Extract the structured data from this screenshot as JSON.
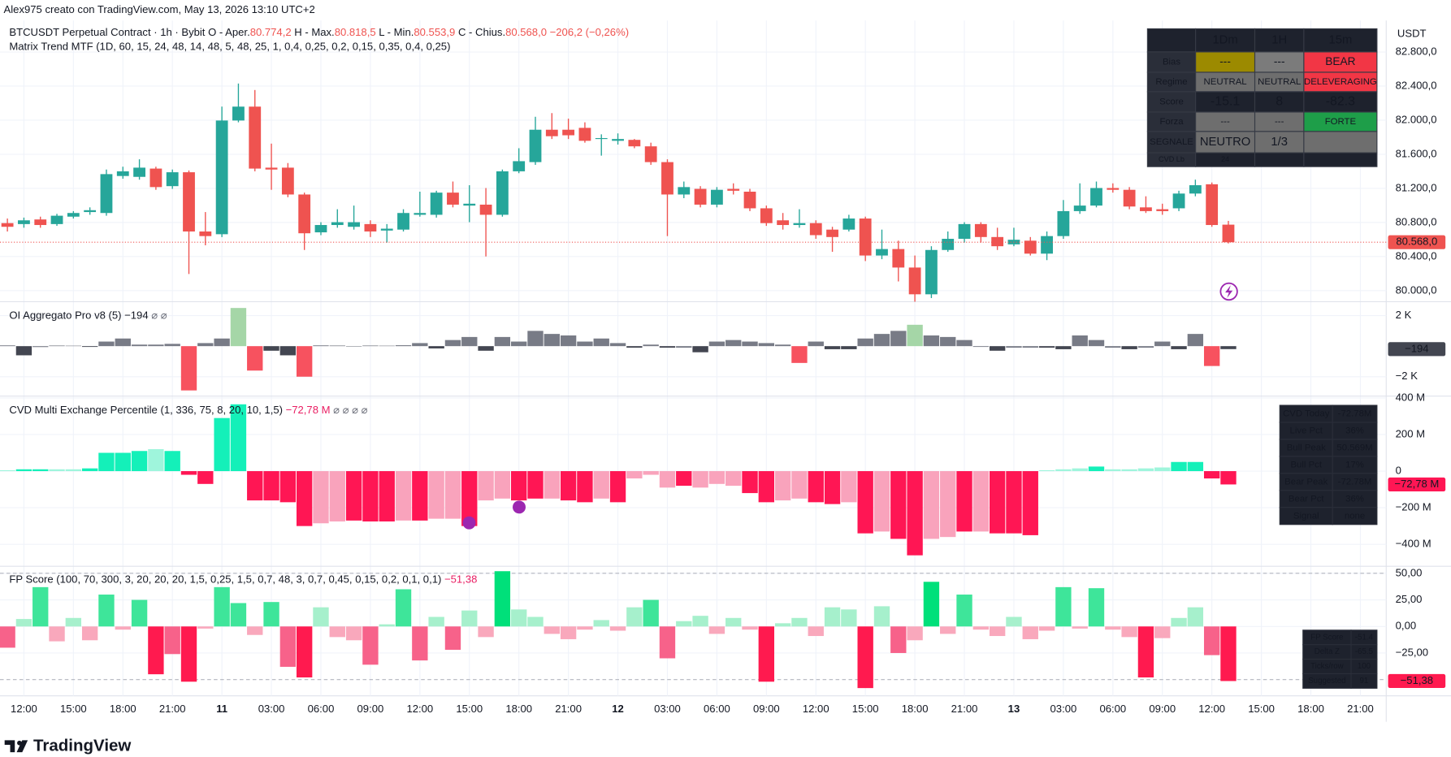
{
  "watermark": "Alex975 creato con TradingView.com, May 13, 2026 13:10 UTC+2",
  "logo": "TradingView",
  "time_axis": {
    "labels": [
      "12:00",
      "15:00",
      "18:00",
      "21:00",
      "11",
      "03:00",
      "06:00",
      "09:00",
      "12:00",
      "15:00",
      "18:00",
      "21:00",
      "12",
      "03:00",
      "06:00",
      "09:00",
      "12:00",
      "15:00",
      "18:00",
      "21:00",
      "13",
      "03:00",
      "06:00",
      "09:00",
      "12:00",
      "15:00",
      "18:00",
      "21:00"
    ]
  },
  "matrix_table": {
    "columns": [
      "1Dm",
      "1H",
      "15m"
    ],
    "rows": [
      {
        "label": "Bias",
        "cells": [
          "---",
          "---",
          "BEAR"
        ],
        "backgrounds": [
          "#9c8a00",
          "#7b7b7b",
          "#f23645"
        ],
        "colors": [
          "#ffffff",
          "#ffffff",
          "#ffffff"
        ]
      },
      {
        "label": "Regime",
        "cells": [
          "NEUTRAL",
          "NEUTRAL",
          "DELEVERAGING"
        ],
        "backgrounds": [
          "#6e6e6e",
          "#6e6e6e",
          "#f23645"
        ],
        "colors": [
          "#ffffff",
          "#ffffff",
          "#ffffff"
        ]
      },
      {
        "label": "Score",
        "cells": [
          "-15.1",
          "8",
          "-82.3"
        ],
        "backgrounds": [
          "#1e222d",
          "#1e222d",
          "#1e222d"
        ],
        "colors": [
          "#f23645",
          "#26c281",
          "#f23645"
        ]
      },
      {
        "label": "Forza",
        "cells": [
          "---",
          "---",
          "FORTE"
        ],
        "backgrounds": [
          "#6e6e6e",
          "#6e6e6e",
          "#1e9e49"
        ],
        "colors": [
          "#ffffff",
          "#ffffff",
          "#ffffff"
        ]
      },
      {
        "label": "SEGNALE",
        "cells": [
          "NEUTRO",
          "1/3"
        ],
        "backgrounds": [
          "#6e6e6e",
          "#6e6e6e",
          "#6e6e6e"
        ],
        "colors": [
          "#ffffff",
          "#ffffff"
        ]
      },
      {
        "label": "CVD Lb",
        "cells": [
          "24"
        ],
        "backgrounds": [
          "#1e222d",
          "#1e222d",
          "#1e222d"
        ],
        "colors": [
          "#8a8e99"
        ]
      }
    ]
  },
  "cvd_table": {
    "rows": [
      {
        "label": "CVD Today",
        "value": "-72.78M",
        "label_color": "#ffffff",
        "value_color": "#ff9800"
      },
      {
        "label": "Live Pct",
        "value": "36%",
        "label_color": "#ffffff",
        "value_color": "#ff9800"
      },
      {
        "label": "Bull Peak",
        "value": "50.569M",
        "label_color": "#26d07c",
        "value_color": "#26d07c"
      },
      {
        "label": "Bull Pct",
        "value": "17%",
        "label_color": "#26d07c",
        "value_color": "#26d07c"
      },
      {
        "label": "Bear Peak",
        "value": "-72.78M",
        "label_color": "#ff9800",
        "value_color": "#ff9800"
      },
      {
        "label": "Bear Pct",
        "value": "36%",
        "label_color": "#ff9800",
        "value_color": "#ff9800"
      },
      {
        "label": "Signal",
        "value": "none",
        "label_color": "#ffffff",
        "value_color": "#ffffff"
      }
    ]
  },
  "fp_table": {
    "rows": [
      {
        "label": "FP Score",
        "value": "-51.4",
        "label_color": "#ffffff",
        "value_color": "#f23645"
      },
      {
        "label": "Delta Z",
        "value": "-65.5",
        "label_color": "#8a8e99",
        "value_color": "#f23645"
      },
      {
        "label": "Ticks/row",
        "value": "100",
        "label_color": "#8a8e99",
        "value_color": "#8a8e99"
      },
      {
        "label": "Suggested",
        "value": "91",
        "label_color": "#8a8e99",
        "value_color": "#ff9800"
      }
    ]
  },
  "chart_data": [
    {
      "type": "candlestick",
      "title": "BTCUSDT Perpetual Contract · 1h · Bybit",
      "ohlc_labels": [
        {
          "label": "O - Aper.",
          "value": "80.774,2"
        },
        {
          "label": "H - Max.",
          "value": "80.818,5"
        },
        {
          "label": "L - Min.",
          "value": "80.553,9"
        },
        {
          "label": "C - Chius.",
          "value": "80.568,0"
        }
      ],
      "change_label": "−206,2 (−0,26%)",
      "subtitle": "Matrix Trend MTF (1D, 60, 15, 24, 48, 14, 48, 5, 48, 25, 1, 0,4, 0,25, 0,2, 0,15, 0,35, 0,4, 0,25)",
      "unit_label": "USDT",
      "last_value_label": "80.568,0",
      "up_color": "#26a69a",
      "down_color": "#ef5350",
      "open": [
        80792,
        80781,
        80835,
        80781,
        80868,
        80922,
        80911,
        81345,
        81335,
        81432,
        81226,
        81389,
        80694,
        80662,
        81996,
        82159,
        81443,
        81443,
        81128,
        80684,
        80770,
        80749,
        80781,
        80705,
        80716,
        80890,
        80890,
        81150,
        80998,
        81009,
        80890,
        81400,
        81508,
        81888,
        81888,
        81910,
        81779,
        81758,
        81769,
        81693,
        81508,
        81128,
        81194,
        81009,
        81194,
        81161,
        80966,
        80825,
        80770,
        80792,
        80716,
        80716,
        80846,
        80412,
        80488,
        80271,
        79957,
        80477,
        80608,
        80781,
        80629,
        80543,
        80586,
        80434,
        80640,
        80933,
        80998,
        81204,
        81183,
        80977,
        80955,
        80966,
        81139,
        81248,
        80774.2
      ],
      "high": [
        80846,
        80857,
        80868,
        80901,
        80933,
        80977,
        81421,
        81454,
        81541,
        81454,
        81421,
        81410,
        80922,
        82159,
        82430,
        82354,
        81725,
        81497,
        81150,
        80803,
        80955,
        80998,
        80825,
        80781,
        80955,
        81161,
        81172,
        81280,
        81237,
        81204,
        81421,
        81671,
        82040,
        82083,
        82018,
        81975,
        81834,
        81845,
        81779,
        81736,
        81541,
        81280,
        81226,
        81215,
        81259,
        81194,
        80998,
        80911,
        80955,
        80825,
        80749,
        80890,
        80868,
        80716,
        80586,
        80412,
        80521,
        80694,
        80803,
        80803,
        80738,
        80738,
        80629,
        80694,
        81063,
        81259,
        81280,
        81259,
        81215,
        81107,
        81020,
        81172,
        81302,
        81269,
        80818.5
      ],
      "low": [
        80694,
        80738,
        80738,
        80760,
        80846,
        80890,
        80879,
        81313,
        81302,
        81183,
        81194,
        80195,
        80532,
        80629,
        81975,
        81400,
        81183,
        81096,
        80477,
        80651,
        80738,
        80716,
        80629,
        80564,
        80694,
        80868,
        80857,
        80977,
        80803,
        80401,
        80868,
        81378,
        81476,
        81779,
        81779,
        81736,
        81584,
        81714,
        81671,
        81476,
        80640,
        81085,
        80977,
        80977,
        81128,
        80933,
        80760,
        80716,
        80738,
        80608,
        80456,
        80694,
        80347,
        80369,
        80108,
        79870,
        79913,
        80456,
        80564,
        80564,
        80477,
        80521,
        80412,
        80358,
        80608,
        80901,
        80977,
        81150,
        80955,
        80911,
        80890,
        80933,
        81107,
        80749,
        80553.9
      ],
      "close": [
        80749,
        80825,
        80770,
        80879,
        80911,
        80944,
        81367,
        81400,
        81443,
        81215,
        81389,
        80694,
        80640,
        81996,
        82159,
        81432,
        81421,
        81128,
        80673,
        80770,
        80803,
        80803,
        80694,
        80727,
        80911,
        80911,
        81150,
        81009,
        81020,
        80890,
        81400,
        81519,
        81888,
        81812,
        81823,
        81758,
        81790,
        81779,
        81693,
        81508,
        81128,
        81215,
        81009,
        81183,
        81172,
        80966,
        80792,
        80770,
        80792,
        80651,
        80629,
        80846,
        80412,
        80488,
        80271,
        79957,
        80477,
        80608,
        80781,
        80629,
        80521,
        80597,
        80434,
        80640,
        80933,
        80998,
        81204,
        81183,
        80987,
        80933,
        80933,
        81139,
        81237,
        80770,
        80568
      ],
      "ylim": [
        79870,
        83170
      ],
      "yticks": [
        {
          "value": 80000,
          "label": "80.000,0"
        },
        {
          "value": 80400,
          "label": "80.400,0"
        },
        {
          "value": 80800,
          "label": "80.800,0"
        },
        {
          "value": 81200,
          "label": "81.200,0"
        },
        {
          "value": 81600,
          "label": "81.600,0"
        },
        {
          "value": 82000,
          "label": "82.000,0"
        },
        {
          "value": 82400,
          "label": "82.400,0"
        },
        {
          "value": 82800,
          "label": "82.800,0"
        }
      ],
      "grid": true
    },
    {
      "type": "bar",
      "title": "OI Aggregato Pro v8 (5)",
      "value_label": "−194",
      "flags": "⌀ ⌀",
      "last_value_label": "−194",
      "values": [
        50,
        -600,
        -60,
        40,
        30,
        -50,
        300,
        500,
        100,
        100,
        150,
        -2900,
        200,
        500,
        2500,
        -1600,
        -300,
        -600,
        -2000,
        50,
        40,
        -30,
        40,
        30,
        60,
        200,
        -150,
        400,
        600,
        -300,
        600,
        300,
        1000,
        800,
        700,
        300,
        500,
        200,
        -100,
        100,
        -100,
        -100,
        -400,
        300,
        400,
        300,
        200,
        100,
        -1100,
        300,
        -200,
        -200,
        500,
        800,
        1000,
        1400,
        700,
        600,
        400,
        -50,
        -300,
        -100,
        -100,
        -100,
        -200,
        700,
        400,
        -100,
        -200,
        -100,
        300,
        -200,
        800,
        -1300,
        -194
      ],
      "colors": [
        "#787b86",
        "#434651",
        "#787b86",
        "#787b86",
        "#787b86",
        "#434651",
        "#787b86",
        "#787b86",
        "#787b86",
        "#787b86",
        "#787b86",
        "#f7525f",
        "#787b86",
        "#787b86",
        "#a5d6a7",
        "#f7525f",
        "#434651",
        "#434651",
        "#f7525f",
        "#787b86",
        "#787b86",
        "#787b86",
        "#787b86",
        "#787b86",
        "#787b86",
        "#787b86",
        "#434651",
        "#787b86",
        "#787b86",
        "#434651",
        "#787b86",
        "#787b86",
        "#787b86",
        "#787b86",
        "#787b86",
        "#787b86",
        "#787b86",
        "#787b86",
        "#434651",
        "#787b86",
        "#434651",
        "#787b86",
        "#434651",
        "#787b86",
        "#787b86",
        "#787b86",
        "#787b86",
        "#787b86",
        "#f7525f",
        "#787b86",
        "#434651",
        "#434651",
        "#787b86",
        "#787b86",
        "#787b86",
        "#a5d6a7",
        "#787b86",
        "#787b86",
        "#787b86",
        "#787b86",
        "#434651",
        "#787b86",
        "#787b86",
        "#434651",
        "#434651",
        "#787b86",
        "#787b86",
        "#787b86",
        "#434651",
        "#787b86",
        "#787b86",
        "#434651",
        "#787b86",
        "#f7525f",
        "#434651"
      ],
      "ylim": [
        -3270,
        2910
      ],
      "yticks": [
        {
          "value": -2000,
          "label": "−2 K"
        },
        {
          "value": 2000,
          "label": "2 K"
        }
      ],
      "grid": true
    },
    {
      "type": "bar",
      "title": "CVD Multi Exchange Percentile (1, 336, 75, 8, 20, 10, 1,5)",
      "value_label": "−72,78 M",
      "flags": "⌀ ⌀ ⌀ ⌀",
      "last_value_label": "−72,78 M",
      "values": [
        5,
        10,
        10,
        10,
        10,
        15,
        100,
        100,
        110,
        120,
        110,
        -20,
        -70,
        290,
        365,
        -160,
        -160,
        -170,
        -300,
        -285,
        -275,
        -270,
        -275,
        -275,
        -270,
        -270,
        -260,
        -260,
        -300,
        -160,
        -150,
        -160,
        -150,
        -150,
        -160,
        -170,
        -150,
        -170,
        -40,
        -20,
        -90,
        -80,
        -90,
        -70,
        -80,
        -120,
        -170,
        -160,
        -150,
        -170,
        -180,
        -170,
        -340,
        -330,
        -370,
        -460,
        -370,
        -360,
        -330,
        -330,
        -340,
        -340,
        -350,
        5,
        10,
        15,
        25,
        10,
        10,
        15,
        20,
        50,
        50,
        -40,
        -72.78
      ],
      "colors": [
        "#9ff5dc",
        "#14f0b9",
        "#14f0b9",
        "#9ff5dc",
        "#9ff5dc",
        "#14f0b9",
        "#14f0b9",
        "#14f0b9",
        "#14f0b9",
        "#9ff5dc",
        "#14f0b9",
        "#ff1654",
        "#ff1654",
        "#14f0b9",
        "#14f0b9",
        "#ff1654",
        "#ff1654",
        "#ff1654",
        "#ff1654",
        "#f9a3bc",
        "#f9a3bc",
        "#ff1654",
        "#ff1654",
        "#ff1654",
        "#f9a3bc",
        "#ff1654",
        "#f9a3bc",
        "#f9a3bc",
        "#ff1654",
        "#f9a3bc",
        "#f9a3bc",
        "#ff1654",
        "#ff1654",
        "#f9a3bc",
        "#ff1654",
        "#ff1654",
        "#f9a3bc",
        "#ff1654",
        "#f9a3bc",
        "#f9a3bc",
        "#f9a3bc",
        "#ff1654",
        "#f9a3bc",
        "#f9a3bc",
        "#f9a3bc",
        "#ff1654",
        "#ff1654",
        "#f9a3bc",
        "#f9a3bc",
        "#ff1654",
        "#ff1654",
        "#f9a3bc",
        "#ff1654",
        "#f9a3bc",
        "#ff1654",
        "#ff1654",
        "#f9a3bc",
        "#f9a3bc",
        "#ff1654",
        "#f9a3bc",
        "#ff1654",
        "#ff1654",
        "#ff1654",
        "#9ff5dc",
        "#9ff5dc",
        "#9ff5dc",
        "#14f0b9",
        "#9ff5dc",
        "#9ff5dc",
        "#9ff5dc",
        "#9ff5dc",
        "#14f0b9",
        "#14f0b9",
        "#ff1654",
        "#ff1654"
      ],
      "ylim": [
        -520,
        410
      ],
      "yticks": [
        {
          "value": -400,
          "label": "−400 M"
        },
        {
          "value": -200,
          "label": "−200 M"
        },
        0,
        {
          "value": 200,
          "label": "200 M"
        },
        {
          "value": 400,
          "label": "400 M"
        }
      ],
      "grid": true
    },
    {
      "type": "bar",
      "title": "FP Score (100, 70, 300, 3, 20, 20, 20, 1,5, 0,25, 1,5, 0,7, 48, 3, 0,7, 0,45, 0,15, 0,2, 0,1, 0,1)",
      "value_label": "−51,38",
      "last_value_label": "−51,38",
      "levels": [
        50,
        -50
      ],
      "values": [
        -20,
        7,
        37,
        -14,
        8,
        -13,
        30,
        -3,
        25,
        -45,
        -26,
        -52,
        -2,
        37,
        22,
        -8,
        23,
        -38,
        -48,
        18,
        -10,
        -13,
        -36,
        2,
        35,
        -32,
        9,
        -22,
        15,
        -10,
        52,
        16,
        9,
        -7,
        -12,
        -3,
        6,
        -4,
        18,
        25,
        -30,
        5,
        10,
        -7,
        8,
        -3,
        -52,
        3,
        8,
        -9,
        18,
        16,
        -58,
        19,
        -25,
        -13,
        42,
        -7,
        30,
        -3,
        -9,
        9,
        -12,
        -4,
        37,
        -2,
        36,
        -3,
        -10,
        -48,
        -11,
        8,
        18,
        -27,
        -51.38
      ],
      "colors": [
        "#f7628a",
        "#a6f0cc",
        "#3ee59a",
        "#f9a8bc",
        "#a6f0cc",
        "#f9a8bc",
        "#3ee59a",
        "#f9a8bc",
        "#3ee59a",
        "#ff1a4f",
        "#f7628a",
        "#ff1a4f",
        "#f9a8bc",
        "#3ee59a",
        "#3ee59a",
        "#f9a8bc",
        "#3ee59a",
        "#f7628a",
        "#ff1a4f",
        "#a6f0cc",
        "#f9a8bc",
        "#f9a8bc",
        "#f7628a",
        "#a6f0cc",
        "#3ee59a",
        "#f7628a",
        "#a6f0cc",
        "#f7628a",
        "#a6f0cc",
        "#f9a8bc",
        "#00e07a",
        "#a6f0cc",
        "#a6f0cc",
        "#f9a8bc",
        "#f9a8bc",
        "#f9a8bc",
        "#a6f0cc",
        "#f9a8bc",
        "#a6f0cc",
        "#3ee59a",
        "#f7628a",
        "#a6f0cc",
        "#a6f0cc",
        "#f9a8bc",
        "#a6f0cc",
        "#f9a8bc",
        "#ff1a4f",
        "#a6f0cc",
        "#a6f0cc",
        "#f9a8bc",
        "#a6f0cc",
        "#a6f0cc",
        "#ff1a4f",
        "#a6f0cc",
        "#f7628a",
        "#f9a8bc",
        "#00e07a",
        "#f9a8bc",
        "#3ee59a",
        "#f9a8bc",
        "#f9a8bc",
        "#a6f0cc",
        "#f9a8bc",
        "#f9a8bc",
        "#3ee59a",
        "#f9a8bc",
        "#3ee59a",
        "#f9a8bc",
        "#f9a8bc",
        "#ff1a4f",
        "#f9a8bc",
        "#a6f0cc",
        "#a6f0cc",
        "#f7628a",
        "#ff1a4f"
      ],
      "ylim": [
        -65.3,
        56.6
      ],
      "yticks": [
        {
          "value": -25,
          "label": "−25,00"
        },
        {
          "value": 0,
          "label": "0,00"
        },
        {
          "value": 25,
          "label": "25,00"
        },
        {
          "value": 50,
          "label": "50,00"
        }
      ],
      "grid": true
    }
  ]
}
